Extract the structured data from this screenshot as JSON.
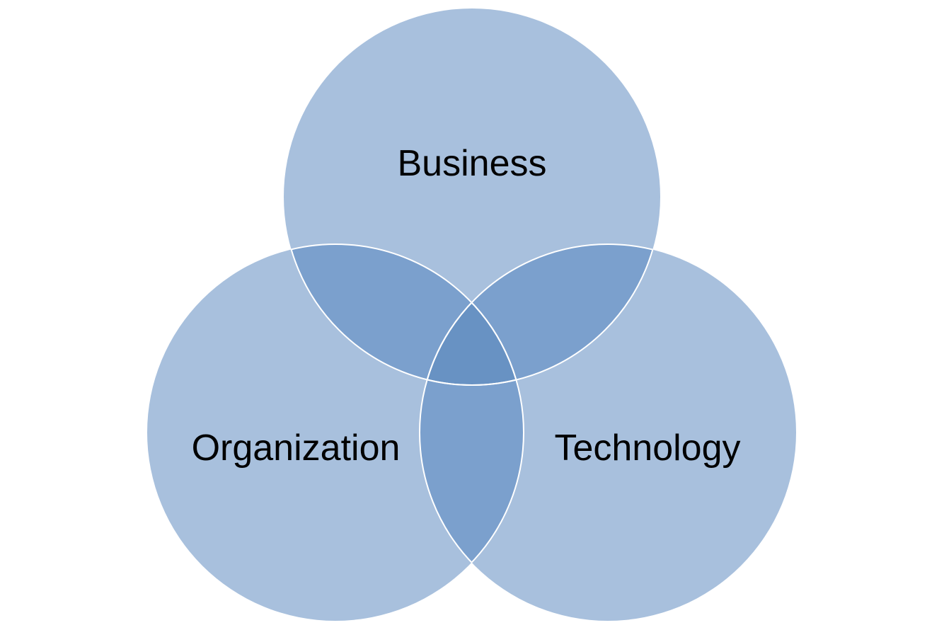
{
  "venn": {
    "sets": [
      {
        "id": "business",
        "label": "Business"
      },
      {
        "id": "organization",
        "label": "Organization"
      },
      {
        "id": "technology",
        "label": "Technology"
      }
    ],
    "colors": {
      "fill": "#a8c0dd",
      "overlap_pair": "#7ba0cd",
      "overlap_all": "#6892c3",
      "outline": "#ffffff"
    }
  }
}
